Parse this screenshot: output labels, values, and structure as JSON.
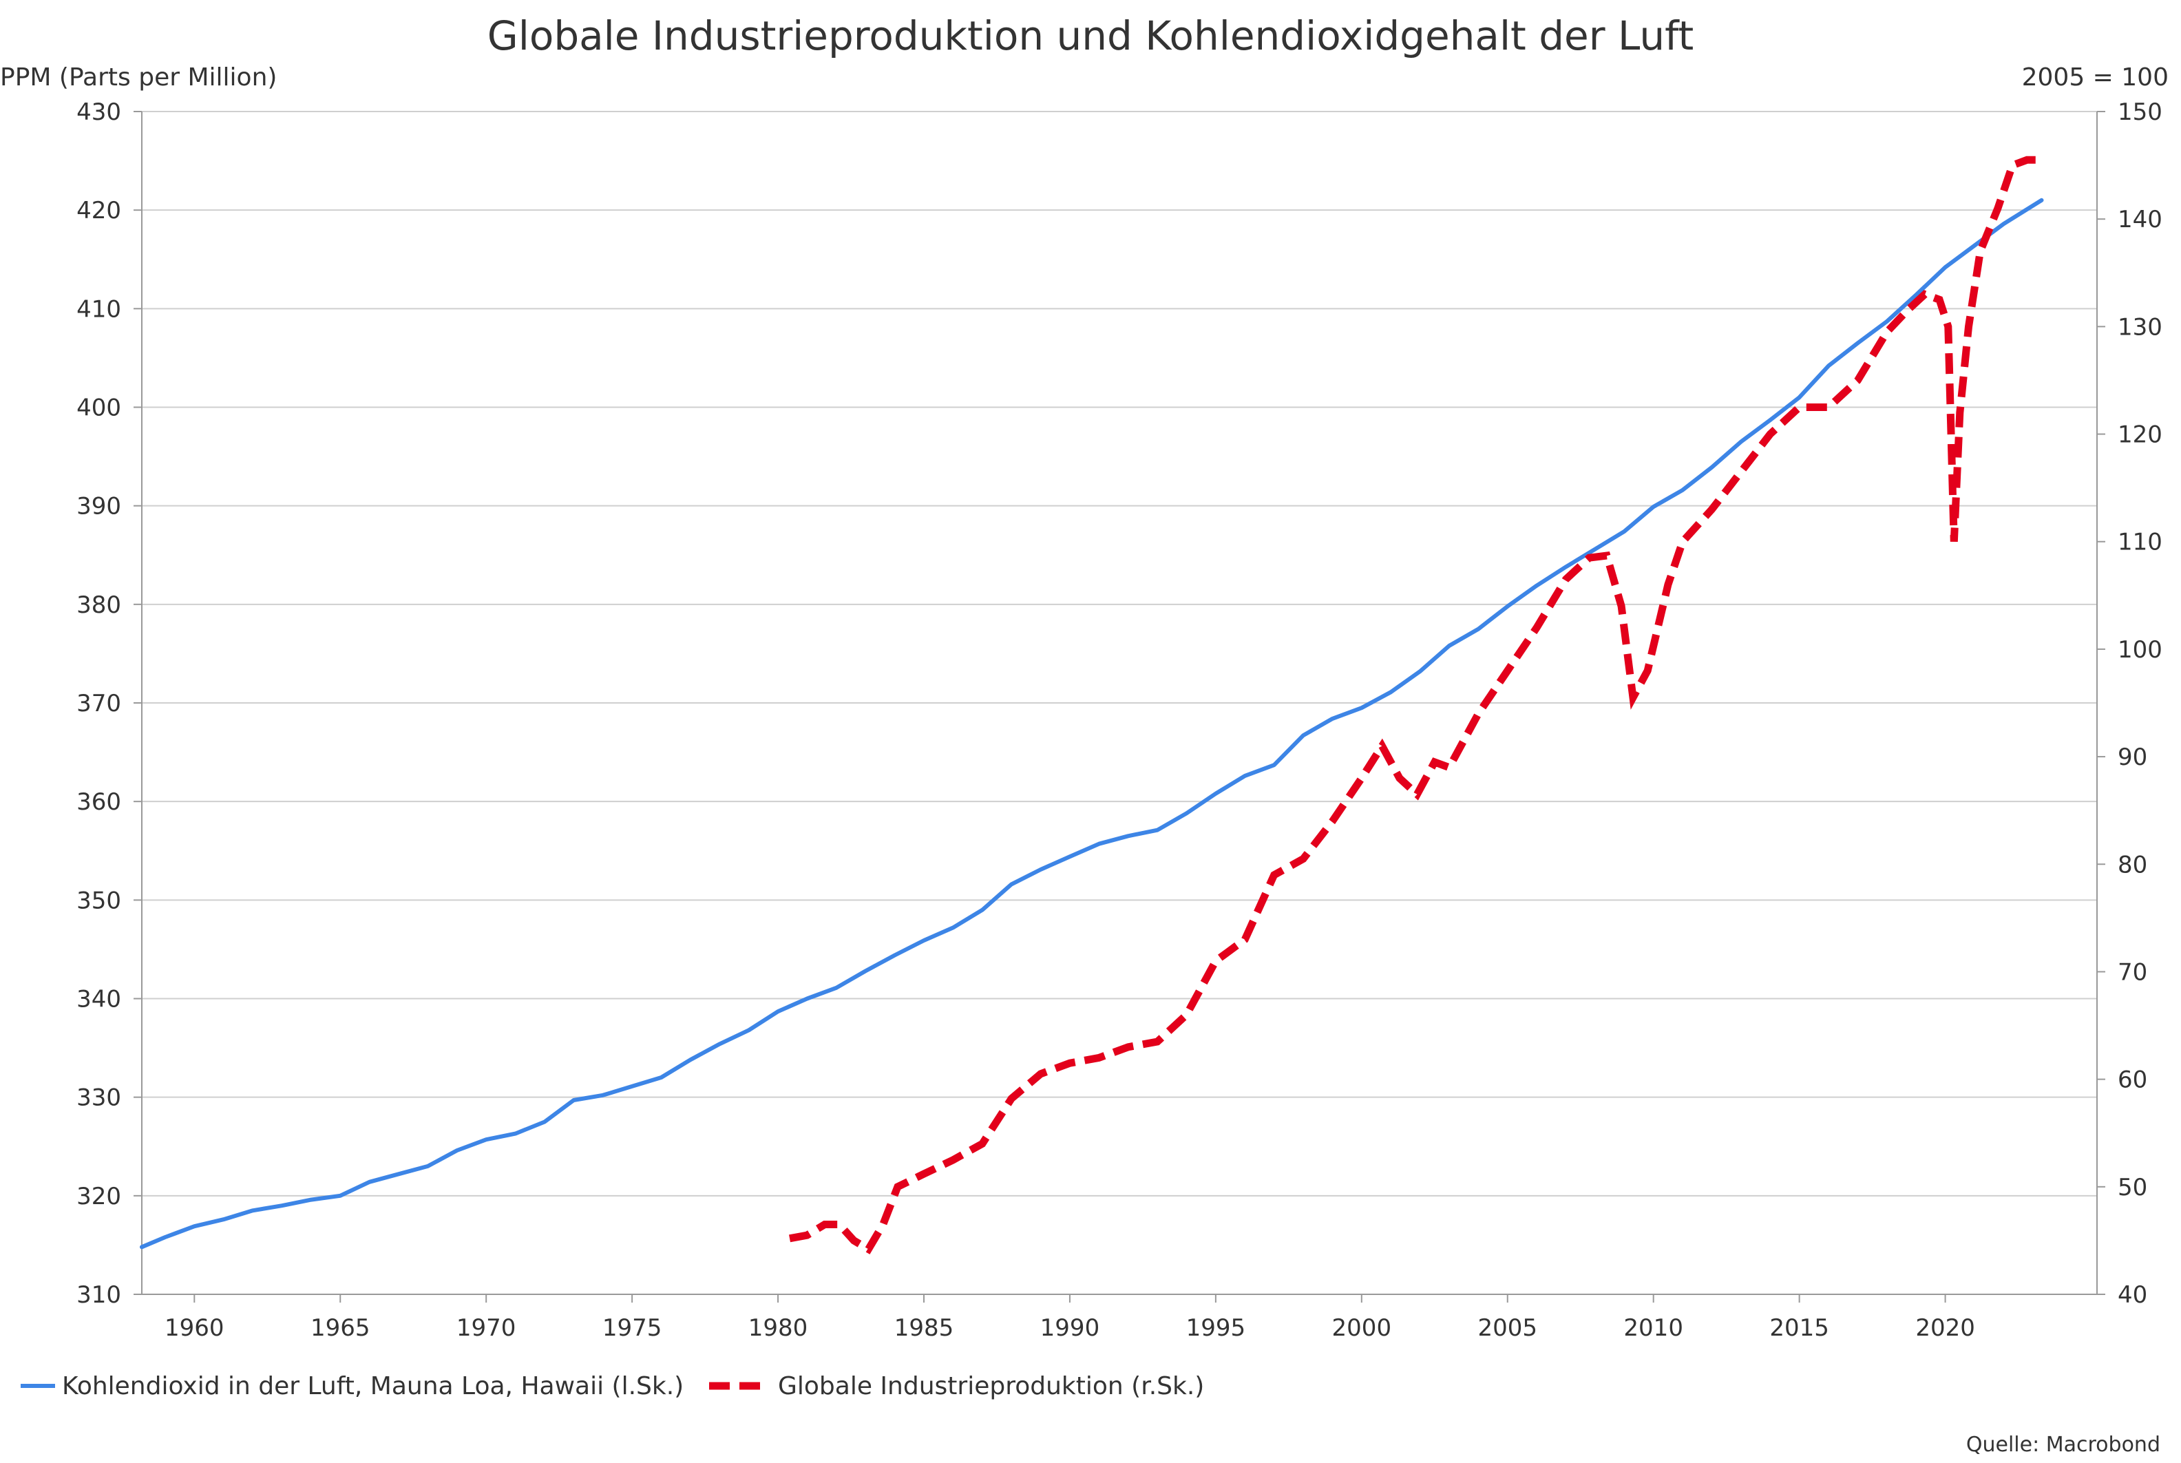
{
  "chart_data": {
    "type": "line",
    "title": "Globale Industrieproduktion und Kohlendioxidgehalt der Luft",
    "ylabel_left": "PPM (Parts per Million)",
    "ylabel_right": "2005 = 100",
    "source": "Quelle: Macrobond",
    "xlim": [
      1958.2,
      2025.2
    ],
    "ylim_left": [
      310,
      430
    ],
    "ylim_right": [
      40,
      150
    ],
    "x_ticks": [
      1960,
      1965,
      1970,
      1975,
      1980,
      1985,
      1990,
      1995,
      2000,
      2005,
      2010,
      2015,
      2020
    ],
    "y_ticks_left": [
      310,
      320,
      330,
      340,
      350,
      360,
      370,
      380,
      390,
      400,
      410,
      420,
      430
    ],
    "y_ticks_right": [
      40,
      50,
      60,
      70,
      80,
      90,
      100,
      110,
      120,
      130,
      140,
      150
    ],
    "grid": true,
    "legend_position": "bottom-left",
    "series": [
      {
        "name": "Kohlendioxid in der Luft, Mauna Loa, Hawaii (l.Sk.)",
        "axis": "left",
        "color": "#3d85e6",
        "style": "solid",
        "x": [
          1958.2,
          1959,
          1960,
          1961,
          1962,
          1963,
          1964,
          1965,
          1966,
          1967,
          1968,
          1969,
          1970,
          1971,
          1972,
          1973,
          1974,
          1975,
          1976,
          1977,
          1978,
          1979,
          1980,
          1981,
          1982,
          1983,
          1984,
          1985,
          1986,
          1987,
          1988,
          1989,
          1990,
          1991,
          1992,
          1993,
          1994,
          1995,
          1996,
          1997,
          1998,
          1999,
          2000,
          2001,
          2002,
          2003,
          2004,
          2005,
          2006,
          2007,
          2008,
          2009,
          2010,
          2011,
          2012,
          2013,
          2014,
          2015,
          2016,
          2017,
          2018,
          2019,
          2020,
          2021,
          2022,
          2023.3
        ],
        "values": [
          314.8,
          315.8,
          316.9,
          317.6,
          318.5,
          319.0,
          319.6,
          320.0,
          321.4,
          322.2,
          323.0,
          324.6,
          325.7,
          326.3,
          327.5,
          329.7,
          330.2,
          331.1,
          332.0,
          333.8,
          335.4,
          336.8,
          338.7,
          340.0,
          341.1,
          342.8,
          344.4,
          345.9,
          347.2,
          349.0,
          351.6,
          353.1,
          354.4,
          355.7,
          356.5,
          357.1,
          358.8,
          360.8,
          362.6,
          363.7,
          366.7,
          368.4,
          369.5,
          371.1,
          373.2,
          375.8,
          377.5,
          379.8,
          381.9,
          383.8,
          385.6,
          387.4,
          389.9,
          391.6,
          393.9,
          396.5,
          398.7,
          401.0,
          404.2,
          406.5,
          408.7,
          411.4,
          414.2,
          416.4,
          418.6,
          421.0
        ]
      },
      {
        "name": "Globale Industrieproduktion (r.Sk.)",
        "axis": "right",
        "color": "#e3001b",
        "style": "dashed",
        "x": [
          1980.4,
          1981,
          1981.6,
          1982.1,
          1982.6,
          1983.1,
          1983.6,
          1984.1,
          1985,
          1986,
          1987,
          1988,
          1989,
          1990,
          1991,
          1992,
          1993,
          1994,
          1995,
          1996,
          1997,
          1998,
          1999,
          2000,
          2000.7,
          2001.3,
          2001.9,
          2002.5,
          2003,
          2004,
          2005,
          2006,
          2007,
          2007.8,
          2008.4,
          2008.9,
          2009.3,
          2009.8,
          2010.5,
          2011,
          2012,
          2013,
          2014,
          2015,
          2016,
          2017,
          2018,
          2018.7,
          2019.3,
          2019.8,
          2020.1,
          2020.3,
          2020.5,
          2020.8,
          2021.2,
          2021.8,
          2022.3,
          2022.8,
          2023.3
        ],
        "values": [
          45.2,
          45.5,
          46.5,
          46.5,
          45.0,
          44.2,
          46.5,
          50.0,
          51.2,
          52.5,
          54.0,
          58.2,
          60.5,
          61.5,
          62.0,
          63.0,
          63.5,
          66.0,
          71.0,
          73.0,
          79.0,
          80.5,
          84.0,
          88.0,
          91.0,
          88.0,
          86.5,
          89.5,
          89.0,
          94.0,
          98.0,
          102.0,
          106.5,
          108.5,
          108.7,
          104.0,
          95.5,
          98.0,
          106.0,
          110.0,
          113.0,
          116.5,
          120.0,
          122.5,
          122.5,
          125.0,
          129.5,
          131.5,
          133.0,
          132.5,
          130.0,
          110.0,
          122.0,
          130.0,
          137.0,
          141.0,
          145.0,
          145.5,
          145.5
        ]
      }
    ]
  }
}
